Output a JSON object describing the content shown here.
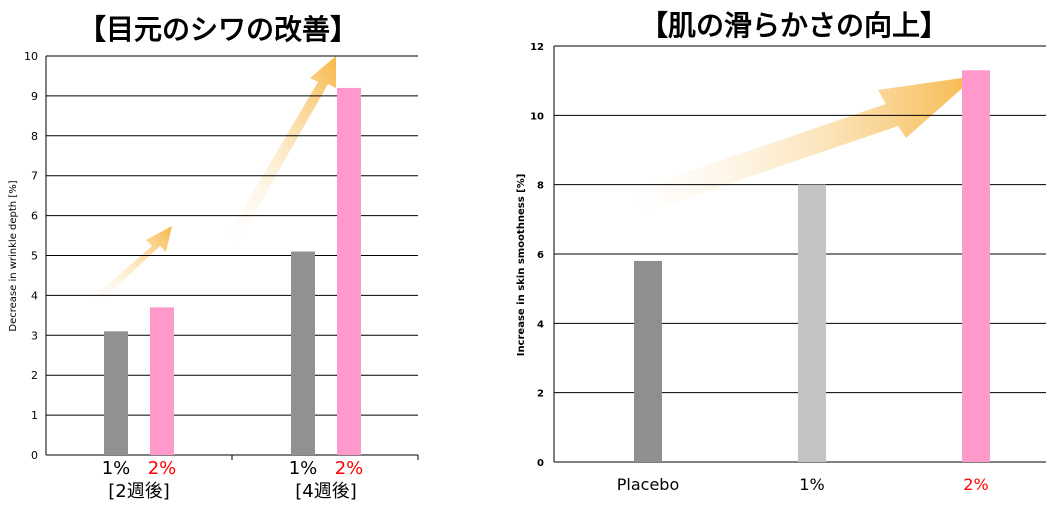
{
  "chart_data": [
    {
      "type": "bar",
      "title": "【目元のシワの改善】",
      "ylabel": "Decrease in wrinkle depth [%]",
      "ylim": [
        0,
        10
      ],
      "yticks": [
        "0",
        "1",
        "2",
        "3",
        "4",
        "5",
        "6",
        "7",
        "8",
        "9",
        "10"
      ],
      "grid": true,
      "groups": [
        {
          "label": "[2週後]",
          "bars": [
            {
              "label": "1%",
              "value": 3.1,
              "color": "#919191"
            },
            {
              "label": "2%",
              "value": 3.7,
              "color": "#ff99cc"
            }
          ]
        },
        {
          "label": "[4週後]",
          "bars": [
            {
              "label": "1%",
              "value": 5.1,
              "color": "#919191"
            },
            {
              "label": "2%",
              "value": 9.2,
              "color": "#ff99cc"
            }
          ]
        }
      ],
      "label_colors": {
        "1%": "#000000",
        "2%": "#ff0000"
      }
    },
    {
      "type": "bar",
      "title": "【肌の滑らかさの向上】",
      "ylabel": "Increase in skin smoothness [%]",
      "ylim": [
        0,
        12
      ],
      "yticks": [
        "0",
        "2",
        "4",
        "6",
        "8",
        "10",
        "12"
      ],
      "grid": true,
      "categories": [
        "Placebo",
        "1%",
        "2%"
      ],
      "values": [
        5.8,
        8.0,
        11.3
      ],
      "colors": [
        "#8f8f8f",
        "#c4c4c4",
        "#ff99cc"
      ],
      "label_colors": [
        "#000000",
        "#000000",
        "#ff0000"
      ]
    }
  ],
  "colors": {
    "arrow_start": "#fffaf0",
    "arrow_end": "#f7b84a"
  }
}
